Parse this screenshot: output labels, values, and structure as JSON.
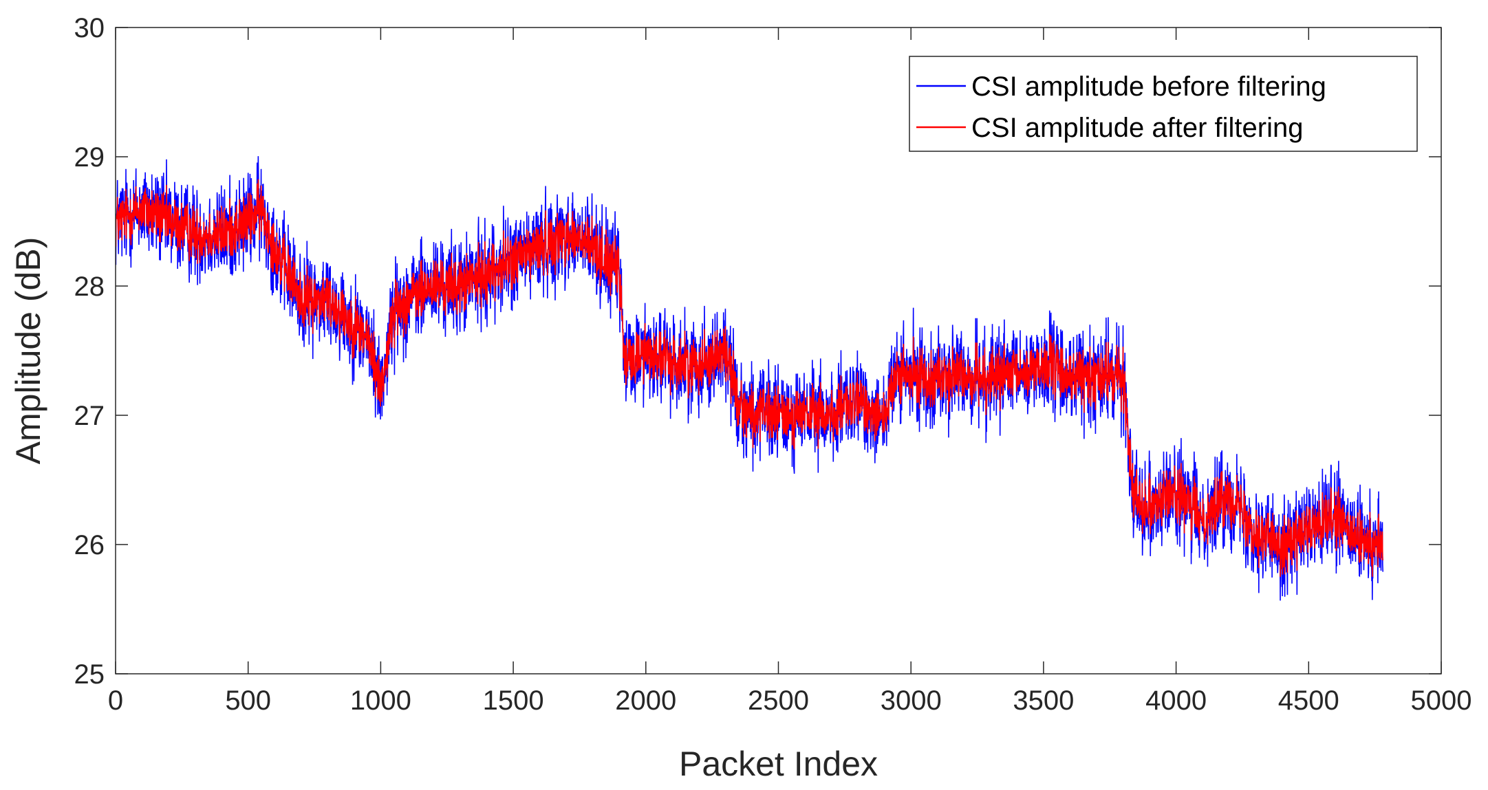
{
  "chart_data": {
    "type": "line",
    "xlabel": "Packet Index",
    "ylabel": "Amplitude (dB)",
    "xlim": [
      0,
      5000
    ],
    "ylim": [
      25,
      30
    ],
    "xticks": [
      0,
      500,
      1000,
      1500,
      2000,
      2500,
      3000,
      3500,
      4000,
      4500,
      5000
    ],
    "yticks": [
      25,
      26,
      27,
      28,
      29,
      30
    ],
    "grid": false,
    "legend_position": "top-right",
    "series": [
      {
        "name": "CSI amplitude before filtering",
        "color": "#0000ff",
        "x": [
          0,
          100,
          200,
          300,
          400,
          500,
          550,
          600,
          700,
          800,
          900,
          950,
          1000,
          1050,
          1100,
          1200,
          1300,
          1400,
          1500,
          1600,
          1700,
          1800,
          1900,
          1920,
          2000,
          2100,
          2200,
          2300,
          2350,
          2400,
          2500,
          2600,
          2700,
          2800,
          2900,
          2950,
          3000,
          3100,
          3200,
          3300,
          3400,
          3500,
          3600,
          3700,
          3800,
          3840,
          3880,
          4000,
          4100,
          4200,
          4300,
          4400,
          4500,
          4600,
          4700,
          4780
        ],
        "y": [
          28.5,
          28.6,
          28.5,
          28.4,
          28.4,
          28.5,
          28.6,
          28.3,
          27.9,
          27.9,
          27.7,
          27.6,
          27.2,
          27.8,
          27.9,
          28.0,
          28.0,
          28.1,
          28.2,
          28.3,
          28.4,
          28.3,
          28.1,
          27.4,
          27.5,
          27.4,
          27.4,
          27.5,
          27.1,
          27.0,
          27.0,
          27.0,
          27.0,
          27.1,
          27.0,
          27.3,
          27.3,
          27.3,
          27.3,
          27.3,
          27.3,
          27.4,
          27.3,
          27.3,
          27.3,
          26.4,
          26.3,
          26.4,
          26.2,
          26.4,
          26.1,
          26.0,
          26.1,
          26.2,
          26.0,
          26.0
        ],
        "noise_amplitude": 0.55
      },
      {
        "name": "CSI amplitude after filtering",
        "color": "#ff0000",
        "x": [
          0,
          100,
          200,
          300,
          400,
          500,
          550,
          600,
          700,
          800,
          900,
          950,
          1000,
          1050,
          1100,
          1200,
          1300,
          1400,
          1500,
          1600,
          1700,
          1800,
          1900,
          1920,
          2000,
          2100,
          2200,
          2300,
          2350,
          2400,
          2500,
          2600,
          2700,
          2800,
          2900,
          2950,
          3000,
          3100,
          3200,
          3300,
          3400,
          3500,
          3600,
          3700,
          3800,
          3840,
          3880,
          4000,
          4100,
          4200,
          4300,
          4400,
          4500,
          4600,
          4700,
          4780
        ],
        "y": [
          28.5,
          28.6,
          28.5,
          28.4,
          28.4,
          28.5,
          28.6,
          28.3,
          27.9,
          27.9,
          27.7,
          27.6,
          27.2,
          27.8,
          27.9,
          28.0,
          28.0,
          28.1,
          28.2,
          28.3,
          28.4,
          28.3,
          28.1,
          27.4,
          27.5,
          27.4,
          27.4,
          27.5,
          27.1,
          27.0,
          27.0,
          27.0,
          27.0,
          27.1,
          27.0,
          27.3,
          27.3,
          27.3,
          27.3,
          27.3,
          27.3,
          27.4,
          27.3,
          27.3,
          27.3,
          26.4,
          26.3,
          26.4,
          26.2,
          26.4,
          26.1,
          26.0,
          26.1,
          26.2,
          26.0,
          26.0
        ],
        "noise_amplitude": 0.32
      }
    ],
    "num_points": 4780
  }
}
